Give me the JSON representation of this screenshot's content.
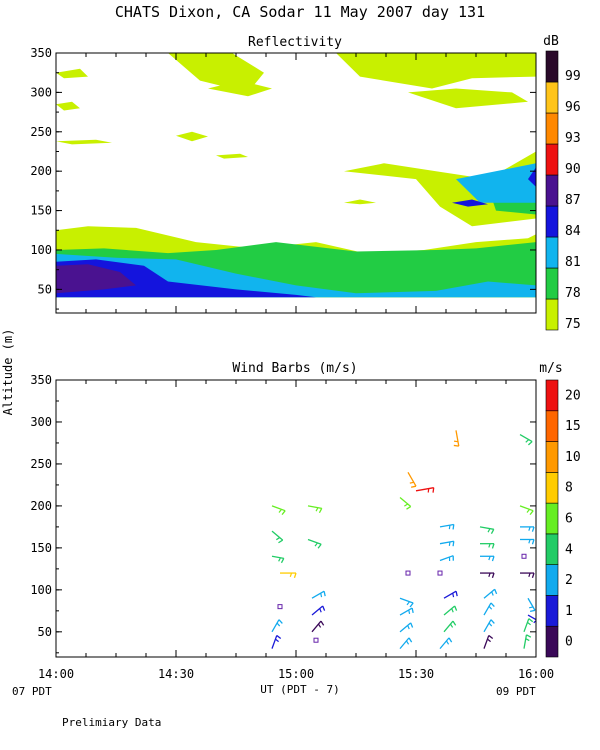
{
  "header": {
    "title": "CHATS Dixon, CA  Sodar  11 May 2007  day 131",
    "footer_note": "Prelimiary Data",
    "shared_ylabel": "Altitude (m)",
    "xlabel": "UT  (PDT - 7)",
    "x_start_note": "07 PDT",
    "x_end_note": "09 PDT"
  },
  "chart_data": [
    {
      "type": "heatmap",
      "title": "Reflectivity",
      "colorbar_unit": "dB",
      "colorbar_ticks": [
        "75",
        "78",
        "81",
        "84",
        "87",
        "90",
        "93",
        "96",
        "99"
      ],
      "colorbar_colors": [
        "#c8f000",
        "#22cc44",
        "#11b4ee",
        "#1414dd",
        "#4a1290",
        "#ee1111",
        "#ff8800",
        "#ffc41a",
        "#2a0a2a"
      ],
      "ylim": [
        20,
        350
      ],
      "yticks": [
        "50",
        "100",
        "150",
        "200",
        "250",
        "300",
        "350"
      ],
      "xlim": [
        0,
        120
      ],
      "x_tick_labels": [
        "14:00",
        "14:30",
        "15:00",
        "15:30",
        "16:00"
      ],
      "contours": [
        {
          "level": "75",
          "color": "#c8f000",
          "points": [
            [
              0,
              40
            ],
            [
              0,
              125
            ],
            [
              8,
              130
            ],
            [
              20,
              128
            ],
            [
              35,
              110
            ],
            [
              50,
              102
            ],
            [
              65,
              110
            ],
            [
              78,
              95
            ],
            [
              92,
              100
            ],
            [
              105,
              110
            ],
            [
              118,
              115
            ],
            [
              120,
              120
            ],
            [
              120,
              40
            ]
          ]
        },
        {
          "level": "78",
          "color": "#22cc44",
          "points": [
            [
              0,
              40
            ],
            [
              0,
              100
            ],
            [
              12,
              102
            ],
            [
              28,
              96
            ],
            [
              40,
              100
            ],
            [
              55,
              110
            ],
            [
              75,
              98
            ],
            [
              95,
              100
            ],
            [
              105,
              102
            ],
            [
              120,
              110
            ],
            [
              120,
              40
            ]
          ]
        },
        {
          "level": "81",
          "color": "#11b4ee",
          "points": [
            [
              0,
              40
            ],
            [
              0,
              95
            ],
            [
              15,
              90
            ],
            [
              30,
              88
            ],
            [
              45,
              70
            ],
            [
              60,
              55
            ],
            [
              75,
              45
            ],
            [
              95,
              48
            ],
            [
              108,
              60
            ],
            [
              120,
              55
            ],
            [
              120,
              40
            ]
          ]
        },
        {
          "level": "84",
          "color": "#1414dd",
          "points": [
            [
              0,
              40
            ],
            [
              0,
              85
            ],
            [
              10,
              88
            ],
            [
              22,
              80
            ],
            [
              28,
              60
            ],
            [
              45,
              50
            ],
            [
              60,
              43
            ],
            [
              65,
              40
            ]
          ]
        },
        {
          "level": "87",
          "color": "#4a1290",
          "points": [
            [
              0,
              45
            ],
            [
              0,
              80
            ],
            [
              8,
              82
            ],
            [
              16,
              72
            ],
            [
              20,
              55
            ],
            [
              12,
              50
            ]
          ]
        },
        {
          "level": "75",
          "color": "#c8f000",
          "points": [
            [
              72,
              200
            ],
            [
              82,
              210
            ],
            [
              95,
              200
            ],
            [
              108,
              190
            ],
            [
              120,
              225
            ],
            [
              120,
              140
            ],
            [
              104,
              130
            ],
            [
              96,
              155
            ],
            [
              90,
              190
            ]
          ]
        },
        {
          "level": "78",
          "color": "#22cc44",
          "points": [
            [
              108,
              180
            ],
            [
              120,
              205
            ],
            [
              120,
              145
            ],
            [
              110,
              150
            ]
          ]
        },
        {
          "level": "81",
          "color": "#11b4ee",
          "points": [
            [
              100,
              190
            ],
            [
              120,
              210
            ],
            [
              120,
              160
            ],
            [
              106,
              160
            ]
          ]
        },
        {
          "level": "84",
          "color": "#1414dd",
          "points": [
            [
              118,
              190
            ],
            [
              120,
              205
            ],
            [
              120,
              180
            ]
          ]
        },
        {
          "level": "84",
          "color": "#1414dd",
          "points": [
            [
              99,
              160
            ],
            [
              104,
              164
            ],
            [
              108,
              158
            ],
            [
              103,
              155
            ]
          ]
        },
        {
          "level": "75",
          "color": "#c8f000",
          "points": [
            [
              28,
              350
            ],
            [
              44,
              350
            ],
            [
              52,
              325
            ],
            [
              48,
              300
            ],
            [
              36,
              315
            ]
          ]
        },
        {
          "level": "75",
          "color": "#c8f000",
          "points": [
            [
              0,
              325
            ],
            [
              6,
              330
            ],
            [
              8,
              320
            ],
            [
              2,
              318
            ]
          ]
        },
        {
          "level": "75",
          "color": "#c8f000",
          "points": [
            [
              38,
              305
            ],
            [
              48,
              295
            ],
            [
              54,
              305
            ],
            [
              46,
              315
            ]
          ]
        },
        {
          "level": "75",
          "color": "#c8f000",
          "points": [
            [
              0,
              238
            ],
            [
              10,
              240
            ],
            [
              14,
              236
            ],
            [
              4,
              234
            ]
          ]
        },
        {
          "level": "75",
          "color": "#c8f000",
          "points": [
            [
              30,
              245
            ],
            [
              34,
              250
            ],
            [
              38,
              244
            ],
            [
              34,
              238
            ]
          ]
        },
        {
          "level": "75",
          "color": "#c8f000",
          "points": [
            [
              40,
              220
            ],
            [
              46,
              222
            ],
            [
              48,
              218
            ],
            [
              42,
              216
            ]
          ]
        },
        {
          "level": "75",
          "color": "#c8f000",
          "points": [
            [
              72,
              160
            ],
            [
              76,
              164
            ],
            [
              80,
              160
            ],
            [
              76,
              158
            ]
          ]
        },
        {
          "level": "75",
          "color": "#c8f000",
          "points": [
            [
              70,
              350
            ],
            [
              120,
              350
            ],
            [
              120,
              320
            ],
            [
              104,
              318
            ],
            [
              94,
              305
            ],
            [
              76,
              320
            ]
          ]
        },
        {
          "level": "75",
          "color": "#c8f000",
          "points": [
            [
              88,
              300
            ],
            [
              100,
              305
            ],
            [
              114,
              300
            ],
            [
              118,
              288
            ],
            [
              100,
              280
            ]
          ]
        },
        {
          "level": "75",
          "color": "#c8f000",
          "points": [
            [
              0,
              285
            ],
            [
              4,
              288
            ],
            [
              6,
              280
            ],
            [
              2,
              277
            ]
          ]
        }
      ]
    },
    {
      "type": "scatter",
      "title": "Wind Barbs (m/s)",
      "colorbar_unit": "m/s",
      "colorbar_ticks": [
        "0",
        "1",
        "2",
        "4",
        "6",
        "8",
        "10",
        "15",
        "20"
      ],
      "colorbar_colors": [
        "#3a0858",
        "#1a1ad8",
        "#12aaee",
        "#22cc66",
        "#66ee22",
        "#ffcc00",
        "#ff9900",
        "#ff6600",
        "#ee1111"
      ],
      "ylim": [
        20,
        350
      ],
      "yticks": [
        "50",
        "100",
        "150",
        "200",
        "250",
        "300",
        "350"
      ],
      "xlim": [
        0,
        120
      ],
      "x_tick_labels": [
        "14:00",
        "14:30",
        "15:00",
        "15:30",
        "16:00"
      ],
      "barbs": [
        {
          "x": 54,
          "y": 200,
          "dir": 110,
          "len": 14,
          "color": "#66ee22"
        },
        {
          "x": 54,
          "y": 170,
          "dir": 130,
          "len": 14,
          "color": "#22cc66"
        },
        {
          "x": 54,
          "y": 140,
          "dir": 100,
          "len": 12,
          "color": "#22cc66"
        },
        {
          "x": 56,
          "y": 120,
          "dir": 90,
          "len": 16,
          "color": "#ffcc00"
        },
        {
          "x": 54,
          "y": 50,
          "dir": 30,
          "len": 14,
          "color": "#12aaee"
        },
        {
          "x": 54,
          "y": 30,
          "dir": 20,
          "len": 14,
          "color": "#1a1ad8"
        },
        {
          "x": 63,
          "y": 200,
          "dir": 100,
          "len": 14,
          "color": "#66ee22"
        },
        {
          "x": 63,
          "y": 160,
          "dir": 110,
          "len": 14,
          "color": "#22cc66"
        },
        {
          "x": 64,
          "y": 90,
          "dir": 60,
          "len": 14,
          "color": "#12aaee"
        },
        {
          "x": 64,
          "y": 70,
          "dir": 50,
          "len": 14,
          "color": "#1a1ad8"
        },
        {
          "x": 64,
          "y": 50,
          "dir": 40,
          "len": 14,
          "color": "#3a0858"
        },
        {
          "x": 86,
          "y": 210,
          "dir": 130,
          "len": 14,
          "color": "#66ee22"
        },
        {
          "x": 88,
          "y": 240,
          "dir": 150,
          "len": 16,
          "color": "#ff9900"
        },
        {
          "x": 90,
          "y": 218,
          "dir": 80,
          "len": 18,
          "color": "#ee1111"
        },
        {
          "x": 86,
          "y": 90,
          "dir": 110,
          "len": 14,
          "color": "#12aaee"
        },
        {
          "x": 86,
          "y": 70,
          "dir": 60,
          "len": 14,
          "color": "#12aaee"
        },
        {
          "x": 86,
          "y": 50,
          "dir": 50,
          "len": 14,
          "color": "#12aaee"
        },
        {
          "x": 86,
          "y": 30,
          "dir": 40,
          "len": 14,
          "color": "#12aaee"
        },
        {
          "x": 96,
          "y": 175,
          "dir": 80,
          "len": 14,
          "color": "#12aaee"
        },
        {
          "x": 96,
          "y": 155,
          "dir": 80,
          "len": 14,
          "color": "#12aaee"
        },
        {
          "x": 96,
          "y": 135,
          "dir": 70,
          "len": 14,
          "color": "#12aaee"
        },
        {
          "x": 97,
          "y": 90,
          "dir": 60,
          "len": 14,
          "color": "#1a1ad8"
        },
        {
          "x": 97,
          "y": 70,
          "dir": 50,
          "len": 14,
          "color": "#22cc66"
        },
        {
          "x": 97,
          "y": 50,
          "dir": 40,
          "len": 14,
          "color": "#22cc66"
        },
        {
          "x": 96,
          "y": 30,
          "dir": 40,
          "len": 14,
          "color": "#12aaee"
        },
        {
          "x": 100,
          "y": 290,
          "dir": 170,
          "len": 16,
          "color": "#ff9900"
        },
        {
          "x": 106,
          "y": 175,
          "dir": 100,
          "len": 14,
          "color": "#22cc66"
        },
        {
          "x": 106,
          "y": 155,
          "dir": 90,
          "len": 14,
          "color": "#22cc66"
        },
        {
          "x": 106,
          "y": 140,
          "dir": 90,
          "len": 14,
          "color": "#12aaee"
        },
        {
          "x": 106,
          "y": 120,
          "dir": 90,
          "len": 14,
          "color": "#3a0858"
        },
        {
          "x": 107,
          "y": 90,
          "dir": 50,
          "len": 14,
          "color": "#12aaee"
        },
        {
          "x": 107,
          "y": 70,
          "dir": 30,
          "len": 14,
          "color": "#12aaee"
        },
        {
          "x": 107,
          "y": 50,
          "dir": 30,
          "len": 14,
          "color": "#12aaee"
        },
        {
          "x": 107,
          "y": 30,
          "dir": 20,
          "len": 14,
          "color": "#3a0858"
        },
        {
          "x": 116,
          "y": 285,
          "dir": 120,
          "len": 14,
          "color": "#22cc66"
        },
        {
          "x": 116,
          "y": 200,
          "dir": 110,
          "len": 14,
          "color": "#66ee22"
        },
        {
          "x": 116,
          "y": 175,
          "dir": 90,
          "len": 14,
          "color": "#12aaee"
        },
        {
          "x": 116,
          "y": 160,
          "dir": 90,
          "len": 14,
          "color": "#12aaee"
        },
        {
          "x": 116,
          "y": 120,
          "dir": 90,
          "len": 14,
          "color": "#3a0858"
        },
        {
          "x": 118,
          "y": 90,
          "dir": 150,
          "len": 14,
          "color": "#12aaee"
        },
        {
          "x": 118,
          "y": 70,
          "dir": 120,
          "len": 14,
          "color": "#1a1ad8"
        },
        {
          "x": 117,
          "y": 50,
          "dir": 20,
          "len": 14,
          "color": "#22cc66"
        },
        {
          "x": 117,
          "y": 30,
          "dir": 10,
          "len": 14,
          "color": "#22cc66"
        }
      ],
      "calm_markers": [
        {
          "x": 56,
          "y": 80,
          "color": "#6622aa"
        },
        {
          "x": 65,
          "y": 40,
          "color": "#6622aa"
        },
        {
          "x": 88,
          "y": 120,
          "color": "#6622aa"
        },
        {
          "x": 96,
          "y": 120,
          "color": "#6622aa"
        },
        {
          "x": 117,
          "y": 140,
          "color": "#6622aa"
        }
      ]
    }
  ]
}
